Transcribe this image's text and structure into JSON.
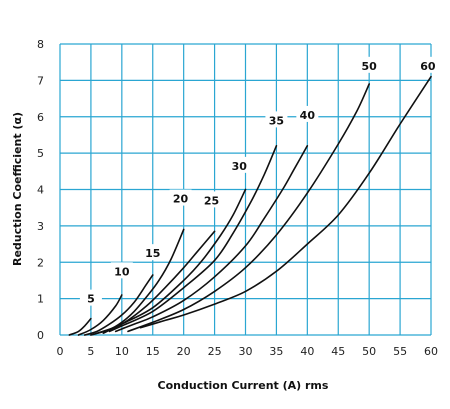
{
  "chart_data": {
    "type": "line",
    "xlabel": "Conduction Current (A) rms",
    "ylabel": "Reduction Coefficient (α)",
    "xlim": [
      0,
      60
    ],
    "ylim": [
      0,
      8
    ],
    "x_ticks": [
      "0",
      "5",
      "10",
      "15",
      "20",
      "25",
      "30",
      "35",
      "40",
      "45",
      "50",
      "55",
      "60"
    ],
    "y_ticks": [
      "0",
      "1",
      "2",
      "3",
      "4",
      "5",
      "6",
      "7",
      "8"
    ],
    "grid": true,
    "grid_color": "#2aa6d2",
    "line_color": "#111111",
    "series": [
      {
        "name": "5",
        "label_at": [
          5,
          1.0
        ],
        "points": [
          [
            1.5,
            0
          ],
          [
            3,
            0.1
          ],
          [
            4,
            0.25
          ],
          [
            5,
            0.45
          ]
        ]
      },
      {
        "name": "10",
        "label_at": [
          10,
          1.75
        ],
        "points": [
          [
            3,
            0
          ],
          [
            5,
            0.15
          ],
          [
            7,
            0.4
          ],
          [
            9,
            0.8
          ],
          [
            10,
            1.1
          ]
        ]
      },
      {
        "name": "15",
        "label_at": [
          15,
          2.25
        ],
        "points": [
          [
            4,
            0
          ],
          [
            6,
            0.1
          ],
          [
            8,
            0.3
          ],
          [
            10,
            0.55
          ],
          [
            12,
            0.9
          ],
          [
            14,
            1.4
          ],
          [
            15,
            1.65
          ]
        ]
      },
      {
        "name": "20",
        "label_at": [
          19.5,
          3.75
        ],
        "points": [
          [
            5,
            0
          ],
          [
            8,
            0.15
          ],
          [
            10,
            0.35
          ],
          [
            12,
            0.65
          ],
          [
            14,
            1.05
          ],
          [
            16,
            1.5
          ],
          [
            18,
            2.1
          ],
          [
            20,
            2.9
          ]
        ]
      },
      {
        "name": "25",
        "label_at": [
          24.5,
          3.7
        ],
        "points": [
          [
            6,
            0.05
          ],
          [
            10,
            0.3
          ],
          [
            14,
            0.8
          ],
          [
            17,
            1.3
          ],
          [
            20,
            1.85
          ],
          [
            22,
            2.25
          ],
          [
            25,
            2.85
          ]
        ]
      },
      {
        "name": "30",
        "label_at": [
          29,
          4.65
        ],
        "points": [
          [
            7,
            0.05
          ],
          [
            10,
            0.3
          ],
          [
            15,
            0.75
          ],
          [
            20,
            1.5
          ],
          [
            23,
            2.05
          ],
          [
            26,
            2.75
          ],
          [
            28,
            3.3
          ],
          [
            30,
            4.0
          ]
        ]
      },
      {
        "name": "35",
        "label_at": [
          35,
          5.9
        ],
        "points": [
          [
            8,
            0.1
          ],
          [
            10,
            0.25
          ],
          [
            15,
            0.65
          ],
          [
            20,
            1.3
          ],
          [
            25,
            2.05
          ],
          [
            28,
            2.8
          ],
          [
            31,
            3.7
          ],
          [
            33,
            4.4
          ],
          [
            35,
            5.2
          ]
        ]
      },
      {
        "name": "40",
        "label_at": [
          40,
          6.05
        ],
        "points": [
          [
            9,
            0.1
          ],
          [
            12,
            0.3
          ],
          [
            15,
            0.5
          ],
          [
            20,
            0.95
          ],
          [
            25,
            1.6
          ],
          [
            30,
            2.45
          ],
          [
            33,
            3.2
          ],
          [
            36,
            4.0
          ],
          [
            38,
            4.6
          ],
          [
            40,
            5.2
          ]
        ]
      },
      {
        "name": "50",
        "label_at": [
          50,
          7.4
        ],
        "points": [
          [
            11,
            0.1
          ],
          [
            15,
            0.35
          ],
          [
            20,
            0.7
          ],
          [
            25,
            1.2
          ],
          [
            30,
            1.85
          ],
          [
            35,
            2.75
          ],
          [
            40,
            3.9
          ],
          [
            45,
            5.25
          ],
          [
            48,
            6.15
          ],
          [
            50,
            6.9
          ]
        ]
      },
      {
        "name": "60",
        "label_at": [
          59.5,
          7.4
        ],
        "points": [
          [
            13,
            0.2
          ],
          [
            17,
            0.4
          ],
          [
            20,
            0.55
          ],
          [
            25,
            0.85
          ],
          [
            30,
            1.2
          ],
          [
            35,
            1.75
          ],
          [
            40,
            2.5
          ],
          [
            45,
            3.3
          ],
          [
            50,
            4.45
          ],
          [
            55,
            5.8
          ],
          [
            60,
            7.1
          ]
        ]
      }
    ]
  }
}
